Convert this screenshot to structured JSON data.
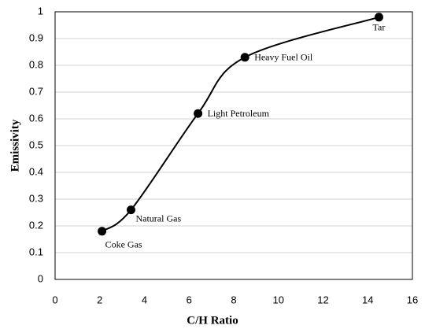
{
  "chart_data": {
    "type": "line",
    "xlabel": "C/H  Ratio",
    "ylabel": "Emissivity",
    "x": [
      2.1,
      3.4,
      6.4,
      8.5,
      14.5
    ],
    "values": [
      0.18,
      0.26,
      0.62,
      0.83,
      0.98
    ],
    "labels": [
      "Coke Gas",
      "Natural Gas",
      "Light Petroleum",
      "Heavy Fuel Oil",
      "Tar"
    ],
    "color": "#000000",
    "xlim": [
      0,
      16
    ],
    "xticks": [
      0,
      2,
      4,
      6,
      8,
      10,
      12,
      14,
      16
    ],
    "ylim": [
      0,
      1
    ],
    "yticks": [
      0,
      0.1,
      0.2,
      0.3,
      0.4,
      0.5,
      0.6,
      0.7,
      0.8,
      0.9,
      1
    ],
    "grid": true
  }
}
